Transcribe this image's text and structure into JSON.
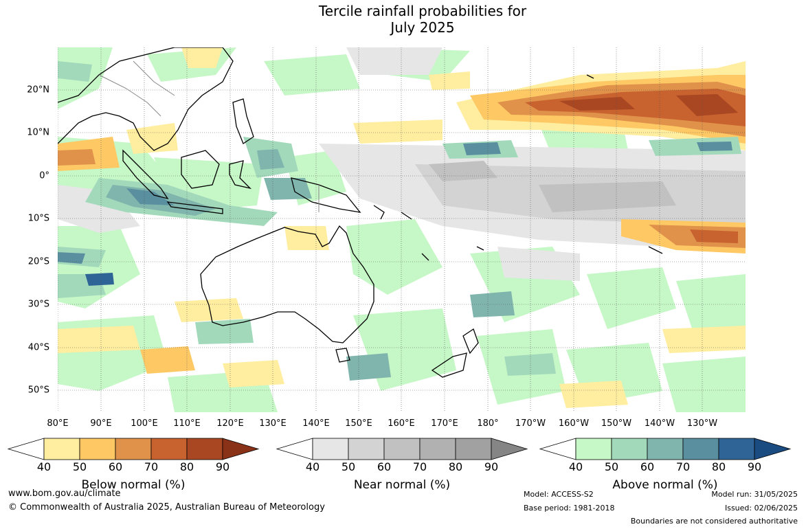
{
  "title": {
    "line1": "Tercile rainfall probabilities for",
    "line2": "July 2025"
  },
  "map": {
    "lat_labels": [
      "20°N",
      "10°N",
      "0°",
      "10°S",
      "20°S",
      "30°S",
      "40°S",
      "50°S"
    ],
    "lon_labels": [
      "80°E",
      "90°E",
      "100°E",
      "110°E",
      "120°E",
      "130°E",
      "140°E",
      "150°E",
      "160°E",
      "170°E",
      "180°",
      "170°W",
      "160°W",
      "150°W",
      "140°W",
      "130°W"
    ]
  },
  "colorbars": [
    {
      "title": "Below normal (%)",
      "ticks": [
        "40",
        "50",
        "60",
        "70",
        "80",
        "90"
      ],
      "colors": [
        "#ffeda0",
        "#fec965",
        "#e0924a",
        "#c8622f",
        "#a94723",
        "#8a3218"
      ]
    },
    {
      "title": "Near normal (%)",
      "ticks": [
        "40",
        "50",
        "60",
        "70",
        "80",
        "90"
      ],
      "colors": [
        "#e6e6e6",
        "#d3d3d3",
        "#c1c1c1",
        "#b1b1b1",
        "#a1a1a1",
        "#858585"
      ]
    },
    {
      "title": "Above normal (%)",
      "ticks": [
        "40",
        "50",
        "60",
        "70",
        "80",
        "90"
      ],
      "colors": [
        "#c6f7c6",
        "#a2d9bb",
        "#80b5ad",
        "#5a8fa0",
        "#2f6596",
        "#1a4c82"
      ]
    }
  ],
  "footer": {
    "website": "www.bom.gov.au/climate",
    "copyright": "© Commonwealth of Australia 2025, Australian Bureau of Meteorology",
    "model": "Model: ACCESS-S2",
    "base_period": "Base period: 1981-2018",
    "model_run": "Model run: 31/05/2025",
    "issued": "Issued: 02/06/2025",
    "boundaries": "Boundaries are not considered authoritative"
  }
}
